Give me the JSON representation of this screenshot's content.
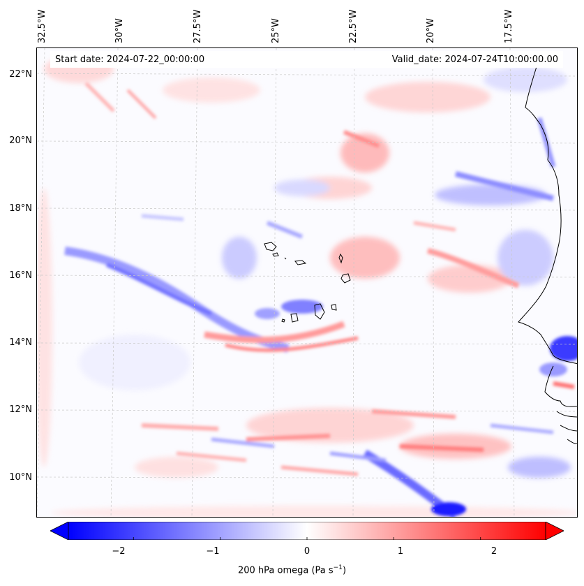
{
  "map": {
    "start_label": "Start date: 2024-07-22_00:00:00",
    "valid_label": "Valid_date: 2024-07-24T10:00:00.00",
    "lon_labels": [
      "32.5°W",
      "30°W",
      "27.5°W",
      "25°W",
      "22.5°W",
      "20°W",
      "17.5°W"
    ],
    "lat_labels": [
      "22°N",
      "20°N",
      "18°N",
      "16°N",
      "14°N",
      "12°N",
      "10°N"
    ],
    "field_name": "200 hPa omega",
    "colors": {
      "negative": "#0000ff",
      "positive": "#ff0000",
      "neutral": "#ffffff",
      "coastline": "#000000"
    }
  },
  "colorbar": {
    "min": -2.75,
    "max": 2.75,
    "tick_labels": [
      "−2",
      "−1",
      "0",
      "1",
      "2"
    ],
    "tick_values": [
      -2,
      -1,
      0,
      1,
      2
    ],
    "title_main": "200 hPa omega (Pa s",
    "title_sup": "−1",
    "title_end": ")"
  }
}
